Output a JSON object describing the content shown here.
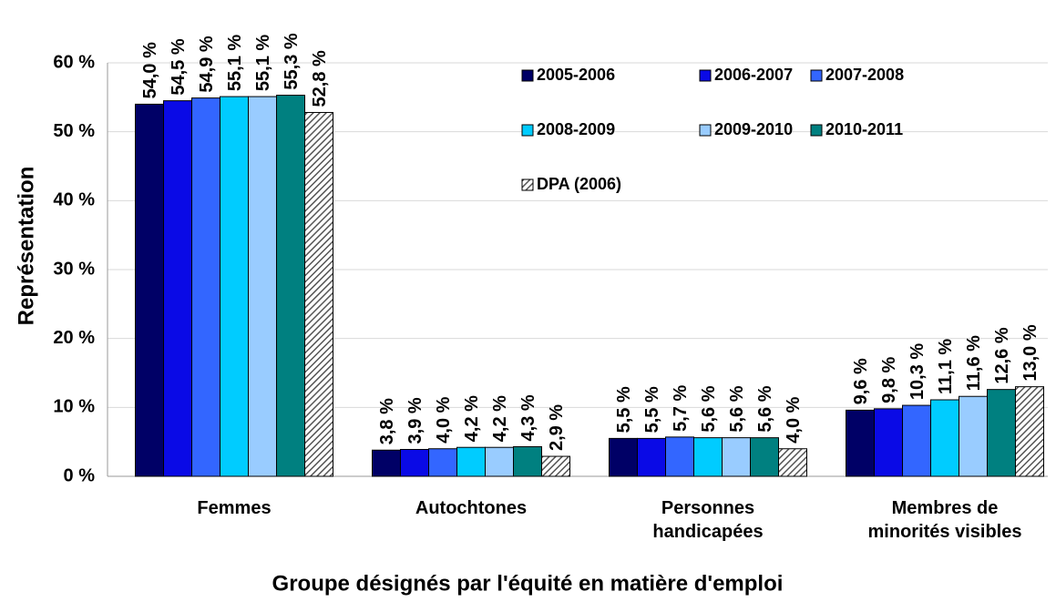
{
  "chart_data": {
    "type": "bar",
    "categories": [
      "Femmes",
      "Autochtones",
      "Personnes\nhandicapées",
      "Membres de\nminorités visibles"
    ],
    "x_label": "Groupe désignés par l'équité en matière d'emploi",
    "y_label": "Représentation",
    "ylim": [
      0,
      60
    ],
    "yticks": [
      {
        "value": 0,
        "label": "0 %"
      },
      {
        "value": 10,
        "label": "10 %"
      },
      {
        "value": 20,
        "label": "20 %"
      },
      {
        "value": 30,
        "label": "30 %"
      },
      {
        "value": 40,
        "label": "40 %"
      },
      {
        "value": 50,
        "label": "50 %"
      },
      {
        "value": 60,
        "label": "60 %"
      }
    ],
    "grid": true,
    "series": [
      {
        "name": "2005-2006",
        "color": "#000066",
        "values": [
          54.0,
          3.8,
          5.5,
          9.6
        ],
        "value_labels": [
          "54,0 %",
          "3,8 %",
          "5,5 %",
          "9,6 %"
        ]
      },
      {
        "name": "2006-2007",
        "color": "#0a0ae6",
        "values": [
          54.5,
          3.9,
          5.5,
          9.8
        ],
        "value_labels": [
          "54,5 %",
          "3,9 %",
          "5,5 %",
          "9,8 %"
        ]
      },
      {
        "name": "2007-2008",
        "color": "#3366ff",
        "values": [
          54.9,
          4.0,
          5.7,
          10.3
        ],
        "value_labels": [
          "54,9 %",
          "4,0 %",
          "5,7 %",
          "10,3 %"
        ]
      },
      {
        "name": "2008-2009",
        "color": "#00ccff",
        "values": [
          55.1,
          4.2,
          5.6,
          11.1
        ],
        "value_labels": [
          "55,1 %",
          "4,2 %",
          "5,6 %",
          "11,1 %"
        ]
      },
      {
        "name": "2009-2010",
        "color": "#99ccff",
        "values": [
          55.1,
          4.2,
          5.6,
          11.6
        ],
        "value_labels": [
          "55,1 %",
          "4,2 %",
          "5,6 %",
          "11,6 %"
        ]
      },
      {
        "name": "2010-2011",
        "color": "#008080",
        "values": [
          55.3,
          4.3,
          5.6,
          12.6
        ],
        "value_labels": [
          "55,3 %",
          "4,3 %",
          "5,6 %",
          "12,6 %"
        ]
      },
      {
        "name": "DPA (2006)",
        "color": "#808080",
        "pattern": "hatch",
        "values": [
          52.8,
          2.9,
          4.0,
          13.0
        ],
        "value_labels": [
          "52,8 %",
          "2,9 %",
          "4,0 %",
          "13,0 %"
        ]
      }
    ]
  }
}
